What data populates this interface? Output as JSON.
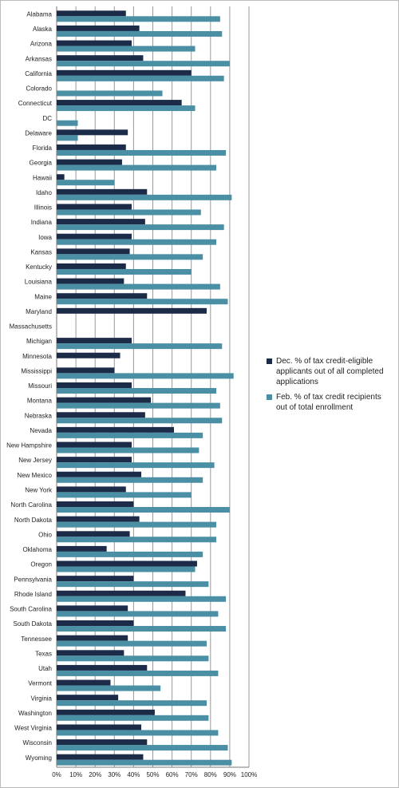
{
  "chart_data": {
    "type": "bar",
    "orientation": "horizontal",
    "categories": [
      "Alabama",
      "Alaska",
      "Arizona",
      "Arkansas",
      "California",
      "Colorado",
      "Connecticut",
      "DC",
      "Delaware",
      "Florida",
      "Georgia",
      "Hawaii",
      "Idaho",
      "Illinois",
      "Indiana",
      "Iowa",
      "Kansas",
      "Kentucky",
      "Louisiana",
      "Maine",
      "Maryland",
      "Massachusetts",
      "Michigan",
      "Minnesota",
      "Mississippi",
      "Missouri",
      "Montana",
      "Nebraska",
      "Nevada",
      "New Hampshire",
      "New Jersey",
      "New Mexico",
      "New York",
      "North Carolina",
      "North Dakota",
      "Ohio",
      "Oklahoma",
      "Oregon",
      "Pennsylvania",
      "Rhode Island",
      "South Carolina",
      "South Dakota",
      "Tennessee",
      "Texas",
      "Utah",
      "Vermont",
      "Virginia",
      "Washington",
      "West Virginia",
      "Wisconsin",
      "Wyoming"
    ],
    "series": [
      {
        "name": "Dec. % of tax credit-eligible applicants out of all completed applications",
        "color": "#1b2b48",
        "values": [
          36,
          43,
          39,
          45,
          70,
          null,
          65,
          null,
          37,
          36,
          34,
          4,
          47,
          39,
          46,
          39,
          38,
          36,
          35,
          47,
          78,
          null,
          39,
          33,
          30,
          39,
          49,
          46,
          61,
          39,
          39,
          44,
          36,
          40,
          43,
          38,
          26,
          73,
          40,
          67,
          37,
          40,
          37,
          35,
          47,
          28,
          32,
          51,
          44,
          47,
          45
        ]
      },
      {
        "name": "Feb. % of tax credit recipients out of total enrollment",
        "color": "#4a8fa4",
        "values": [
          85,
          86,
          72,
          90,
          87,
          55,
          72,
          11,
          11,
          88,
          83,
          30,
          91,
          75,
          87,
          83,
          76,
          70,
          85,
          89,
          null,
          null,
          86,
          null,
          92,
          83,
          85,
          86,
          76,
          74,
          82,
          76,
          70,
          90,
          83,
          83,
          76,
          72,
          79,
          88,
          84,
          88,
          78,
          79,
          84,
          54,
          78,
          79,
          84,
          89,
          91
        ]
      }
    ],
    "xlim": [
      0,
      100
    ],
    "xticks": [
      {
        "value": 0,
        "label": "0%"
      },
      {
        "value": 10,
        "label": "10%"
      },
      {
        "value": 20,
        "label": "20%"
      },
      {
        "value": 30,
        "label": "30%"
      },
      {
        "value": 40,
        "label": "40%"
      },
      {
        "value": 50,
        "label": "50%"
      },
      {
        "value": 60,
        "label": "60%"
      },
      {
        "value": 70,
        "label": "70%"
      },
      {
        "value": 80,
        "label": "80%"
      },
      {
        "value": 90,
        "label": "90%"
      },
      {
        "value": 100,
        "label": "100%"
      }
    ],
    "grid": true,
    "legend": "right"
  }
}
